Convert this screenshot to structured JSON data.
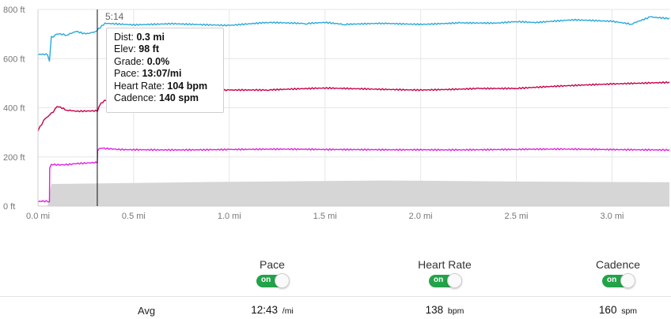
{
  "chart_data": {
    "type": "line",
    "x_unit": "mi",
    "xlim": [
      0,
      3.3
    ],
    "ylim": [
      0,
      800
    ],
    "x_ticks": [
      "0.0 mi",
      "0.5 mi",
      "1.0 mi",
      "1.5 mi",
      "2.0 mi",
      "2.5 mi",
      "3.0 mi"
    ],
    "x_tick_values": [
      0,
      0.5,
      1.0,
      1.5,
      2.0,
      2.5,
      3.0
    ],
    "y_ticks": [
      "0 ft",
      "200 ft",
      "400 ft",
      "600 ft",
      "800 ft"
    ],
    "y_tick_values": [
      0,
      200,
      400,
      600,
      800
    ],
    "cursor": {
      "x": 0.31,
      "time_label": "5:14"
    },
    "series": [
      {
        "key": "elevation",
        "color": "#d6d6d6",
        "style": "area",
        "x": [
          0,
          0.05,
          0.07,
          0.3,
          0.5,
          1.0,
          1.5,
          1.8,
          2.0,
          2.5,
          3.0,
          3.3
        ],
        "y": [
          0,
          0,
          90,
          92,
          94,
          99,
          102,
          104,
          103,
          100,
          98,
          97
        ]
      },
      {
        "key": "cadence",
        "color": "#e020e0",
        "style": "line",
        "x": [
          0,
          0.06,
          0.061,
          0.07,
          0.2,
          0.31,
          0.312,
          0.32,
          0.5,
          1.0,
          1.5,
          2.0,
          2.5,
          3.0,
          3.3
        ],
        "y": [
          17,
          17,
          155,
          170,
          172,
          175,
          225,
          234,
          232,
          230,
          228,
          232,
          230,
          228,
          230
        ]
      },
      {
        "key": "heart_rate",
        "color": "#c8004a",
        "style": "line",
        "x": [
          0,
          0.03,
          0.06,
          0.1,
          0.15,
          0.2,
          0.31,
          0.33,
          0.4,
          0.7,
          1.0,
          1.2,
          1.5,
          2.0,
          2.3,
          2.5,
          2.8,
          3.0,
          3.3
        ],
        "y": [
          305,
          350,
          370,
          405,
          390,
          385,
          385,
          420,
          460,
          470,
          472,
          470,
          478,
          475,
          480,
          478,
          488,
          495,
          505
        ]
      },
      {
        "key": "pace",
        "color": "#29a9d9",
        "style": "line",
        "x": [
          0,
          0.05,
          0.06,
          0.07,
          0.1,
          0.15,
          0.2,
          0.25,
          0.3,
          0.35,
          0.5,
          0.7,
          1.0,
          1.2,
          1.4,
          1.5,
          1.6,
          1.8,
          2.0,
          2.2,
          2.4,
          2.5,
          2.6,
          2.8,
          3.0,
          3.1,
          3.2,
          3.3
        ],
        "y": [
          615,
          615,
          590,
          690,
          700,
          695,
          710,
          700,
          710,
          745,
          740,
          745,
          735,
          745,
          740,
          745,
          738,
          745,
          742,
          748,
          745,
          750,
          745,
          755,
          750,
          740,
          770,
          765
        ]
      }
    ]
  },
  "tooltip": {
    "dist_label": "Dist:",
    "dist_value": "0.3 mi",
    "elev_label": "Elev:",
    "elev_value": "98 ft",
    "grade_label": "Grade:",
    "grade_value": "0.0%",
    "pace_label": "Pace:",
    "pace_value": "13:07/mi",
    "hr_label": "Heart Rate:",
    "hr_value": "104 bpm",
    "cad_label": "Cadence:",
    "cad_value": "140 spm"
  },
  "controls": [
    {
      "label": "Pace",
      "toggle": "on"
    },
    {
      "label": "Heart Rate",
      "toggle": "on"
    },
    {
      "label": "Cadence",
      "toggle": "on"
    }
  ],
  "averages": {
    "label": "Avg",
    "pace": {
      "value": "12:43",
      "unit": "/mi"
    },
    "heart_rate": {
      "value": "138",
      "unit": "bpm"
    },
    "cadence": {
      "value": "160",
      "unit": "spm"
    }
  }
}
